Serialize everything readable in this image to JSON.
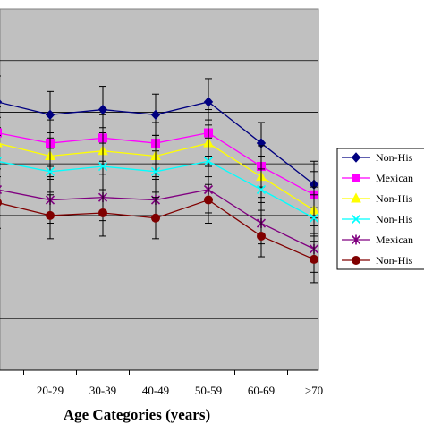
{
  "chart_data": {
    "type": "line",
    "xlabel": "Age Categories (years)",
    "ylabel": "",
    "categories": [
      "",
      "20-29",
      "30-39",
      "40-49",
      "50-59",
      "60-69",
      ">70"
    ],
    "ylim": [
      0,
      7
    ],
    "grid": true,
    "legend_position": "right",
    "series": [
      {
        "name": "Non-His",
        "color": "#000080",
        "marker": "diamond",
        "values": [
          5.2,
          4.95,
          5.05,
          4.95,
          5.2,
          4.4,
          3.6
        ],
        "errors": [
          0.5,
          0.45,
          0.45,
          0.4,
          0.45,
          0.4,
          0.45
        ]
      },
      {
        "name": "Mexican",
        "color": "#ff00ff",
        "marker": "square",
        "values": [
          4.6,
          4.4,
          4.5,
          4.4,
          4.6,
          3.95,
          3.4
        ],
        "errors": [
          0.5,
          0.45,
          0.45,
          0.4,
          0.45,
          0.4,
          0.45
        ]
      },
      {
        "name": "Non-His",
        "color": "#ffff00",
        "marker": "triangle",
        "values": [
          4.4,
          4.15,
          4.25,
          4.15,
          4.4,
          3.75,
          3.1
        ],
        "errors": [
          0.5,
          0.45,
          0.45,
          0.4,
          0.45,
          0.4,
          0.45
        ]
      },
      {
        "name": "Non-His",
        "color": "#00ffff",
        "marker": "x",
        "values": [
          4.05,
          3.85,
          3.95,
          3.85,
          4.05,
          3.5,
          2.95
        ],
        "errors": [
          0.5,
          0.45,
          0.45,
          0.4,
          0.45,
          0.4,
          0.45
        ]
      },
      {
        "name": "Mexican",
        "color": "#800080",
        "marker": "star",
        "values": [
          3.5,
          3.3,
          3.35,
          3.3,
          3.5,
          2.85,
          2.35
        ],
        "errors": [
          0.5,
          0.45,
          0.45,
          0.4,
          0.45,
          0.4,
          0.45
        ]
      },
      {
        "name": "Non-His",
        "color": "#800000",
        "marker": "circle",
        "values": [
          3.25,
          3.0,
          3.05,
          2.95,
          3.3,
          2.6,
          2.15
        ],
        "errors": [
          0.5,
          0.45,
          0.45,
          0.4,
          0.45,
          0.4,
          0.45
        ]
      }
    ]
  }
}
